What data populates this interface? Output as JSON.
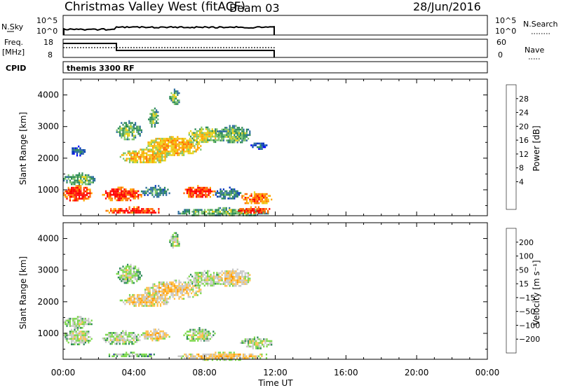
{
  "header": {
    "title": "Christmas Valley West (fitACF)",
    "beam": "Beam 03",
    "date": "28/Jun/2016"
  },
  "status_panel": {
    "nsky_label": "N.Sky",
    "nsky_ticks": [
      "10^5",
      "10^0"
    ],
    "nsky_right_ticks": [
      "10^5",
      "10^0"
    ],
    "nsearch_label": "N.Search",
    "freq_label": [
      "Freq.",
      "[MHz]"
    ],
    "freq_ticks": [
      "18",
      "8"
    ],
    "nave_ticks": [
      "60",
      "0"
    ],
    "nave_label": "Nave",
    "cpid_label": "CPID",
    "cpid_value": "themis 3300 RF"
  },
  "x_axis": {
    "label": "Time UT",
    "tick_labels": [
      "00:00",
      "04:00",
      "08:00",
      "12:00",
      "16:00",
      "20:00",
      "00:00"
    ]
  },
  "chart_data": [
    {
      "type": "heatmap",
      "name": "power",
      "ylabel": "Slant Range [km]",
      "xlabel": "",
      "xlim": [
        0,
        24
      ],
      "ylim": [
        180,
        4500
      ],
      "y_ticks": [
        "1000",
        "2000",
        "3000",
        "4000"
      ],
      "colorbar": {
        "label": "Power [dB]",
        "ticks": [
          "28",
          "24",
          "20",
          "16",
          "12",
          "8",
          "4"
        ],
        "colors": [
          "#0000ff",
          "#0033bb",
          "#2d6d9e",
          "#2e8b57",
          "#7cc46a",
          "#e8d21a",
          "#ffa500",
          "#ff6a00",
          "#ff0000"
        ]
      },
      "regions": [
        {
          "t0": 0.0,
          "t1": 1.6,
          "r0": 650,
          "r1": 1150,
          "level": 8
        },
        {
          "t0": 0.0,
          "t1": 1.8,
          "r0": 1150,
          "r1": 1550,
          "level": 4
        },
        {
          "t0": 2.2,
          "t1": 4.4,
          "r0": 650,
          "r1": 1100,
          "level": 8
        },
        {
          "t0": 4.4,
          "t1": 6.0,
          "r0": 800,
          "r1": 1150,
          "level": 3
        },
        {
          "t0": 6.8,
          "t1": 8.6,
          "r0": 750,
          "r1": 1150,
          "level": 8
        },
        {
          "t0": 8.6,
          "t1": 10.0,
          "r0": 700,
          "r1": 1100,
          "level": 3
        },
        {
          "t0": 10.0,
          "t1": 11.8,
          "r0": 550,
          "r1": 950,
          "level": 7
        },
        {
          "t0": 6.4,
          "t1": 11.6,
          "r0": 180,
          "r1": 450,
          "level": 4
        },
        {
          "t0": 2.4,
          "t1": 5.6,
          "r0": 250,
          "r1": 480,
          "level": 8
        },
        {
          "t0": 9.8,
          "t1": 11.8,
          "r0": 250,
          "r1": 480,
          "level": 8
        },
        {
          "t0": 3.2,
          "t1": 6.0,
          "r0": 1850,
          "r1": 2300,
          "level": 6
        },
        {
          "t0": 4.6,
          "t1": 7.8,
          "r0": 2100,
          "r1": 2700,
          "level": 6
        },
        {
          "t0": 7.0,
          "t1": 9.0,
          "r0": 2500,
          "r1": 3000,
          "level": 5
        },
        {
          "t0": 8.6,
          "t1": 10.6,
          "r0": 2500,
          "r1": 3050,
          "level": 4
        },
        {
          "t0": 10.6,
          "t1": 11.5,
          "r0": 2300,
          "r1": 2550,
          "level": 2
        },
        {
          "t0": 3.0,
          "t1": 4.4,
          "r0": 2600,
          "r1": 3200,
          "level": 4
        },
        {
          "t0": 4.8,
          "t1": 5.4,
          "r0": 3000,
          "r1": 3600,
          "level": 4
        },
        {
          "t0": 6.0,
          "t1": 6.6,
          "r0": 3700,
          "r1": 4200,
          "level": 4
        },
        {
          "t0": 0.4,
          "t1": 1.2,
          "r0": 2100,
          "r1": 2400,
          "level": 2
        }
      ]
    },
    {
      "type": "heatmap",
      "name": "velocity",
      "ylabel": "Slant Range [km]",
      "xlabel": "Time UT",
      "xlim": [
        0,
        24
      ],
      "ylim": [
        180,
        4500
      ],
      "y_ticks": [
        "1000",
        "2000",
        "3000",
        "4000"
      ],
      "colorbar": {
        "label": "Velocity [m s⁻¹]",
        "ticks": [
          "200",
          "100",
          "50",
          "15",
          "−15",
          "−50",
          "−100",
          "−200"
        ],
        "colors": [
          "#0000ff",
          "#2a3a9c",
          "#2e8b57",
          "#7cd84a",
          "#c8c8c8",
          "#ffc04a",
          "#ff9a00",
          "#ff6000",
          "#ff0000"
        ]
      },
      "regions": [
        {
          "t0": 0.0,
          "t1": 1.6,
          "r0": 650,
          "r1": 1200,
          "level": 4
        },
        {
          "t0": 0.0,
          "t1": 1.6,
          "r0": 1200,
          "r1": 1550,
          "level": 4
        },
        {
          "t0": 2.2,
          "t1": 4.4,
          "r0": 650,
          "r1": 1100,
          "level": 4
        },
        {
          "t0": 4.4,
          "t1": 6.0,
          "r0": 800,
          "r1": 1150,
          "level": 5
        },
        {
          "t0": 6.8,
          "t1": 8.6,
          "r0": 750,
          "r1": 1200,
          "level": 4
        },
        {
          "t0": 10.0,
          "t1": 11.8,
          "r0": 550,
          "r1": 900,
          "level": 4
        },
        {
          "t0": 2.4,
          "t1": 5.2,
          "r0": 250,
          "r1": 420,
          "level": 3
        },
        {
          "t0": 6.4,
          "t1": 11.8,
          "r0": 180,
          "r1": 420,
          "level": 5
        },
        {
          "t0": 3.2,
          "t1": 6.0,
          "r0": 1850,
          "r1": 2300,
          "level": 5
        },
        {
          "t0": 4.6,
          "t1": 7.8,
          "r0": 2100,
          "r1": 2700,
          "level": 5
        },
        {
          "t0": 7.0,
          "t1": 9.0,
          "r0": 2500,
          "r1": 3000,
          "level": 4
        },
        {
          "t0": 8.6,
          "t1": 10.6,
          "r0": 2500,
          "r1": 3050,
          "level": 5
        },
        {
          "t0": 3.0,
          "t1": 4.4,
          "r0": 2600,
          "r1": 3200,
          "level": 4
        },
        {
          "t0": 6.0,
          "t1": 6.6,
          "r0": 3700,
          "r1": 4200,
          "level": 4
        }
      ]
    }
  ]
}
